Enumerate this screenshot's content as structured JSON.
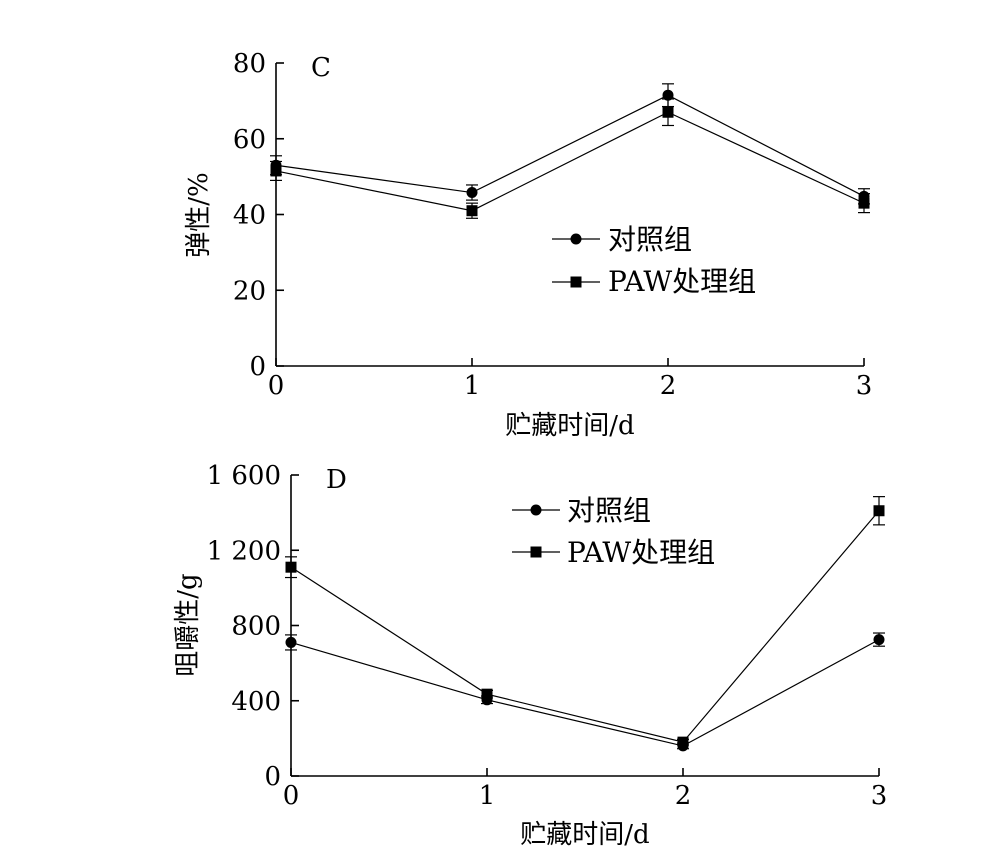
{
  "chart_data": [
    {
      "type": "line",
      "panel_label": "C",
      "title": "",
      "xlabel": "贮藏时间/d",
      "ylabel": "弹性/%",
      "xlim": [
        0,
        3
      ],
      "ylim": [
        0,
        80
      ],
      "x": [
        0,
        1,
        2,
        3
      ],
      "x_ticks": [
        "0",
        "1",
        "2",
        "3"
      ],
      "y_ticks": [
        "0",
        "20",
        "40",
        "60",
        "80"
      ],
      "legend_position": "middle-right",
      "series": [
        {
          "name": "对照组",
          "marker": "circle",
          "values": [
            53,
            45.8,
            71.5,
            44.8
          ],
          "errors": [
            2.5,
            2,
            3,
            2
          ]
        },
        {
          "name": "PAW处理组",
          "marker": "square",
          "values": [
            51.5,
            41,
            67,
            43
          ],
          "errors": [
            2.5,
            2,
            3.5,
            2.5
          ]
        }
      ]
    },
    {
      "type": "line",
      "panel_label": "D",
      "title": "",
      "xlabel": "贮藏时间/d",
      "ylabel": "咀嚼性/g",
      "xlim": [
        0,
        3
      ],
      "ylim": [
        0,
        1600
      ],
      "x": [
        0,
        1,
        2,
        3
      ],
      "x_ticks": [
        "0",
        "1",
        "2",
        "3"
      ],
      "y_ticks": [
        "0",
        "400",
        "800",
        "1 200",
        "1 600"
      ],
      "legend_position": "top-right",
      "series": [
        {
          "name": "对照组",
          "marker": "circle",
          "values": [
            710,
            405,
            160,
            725
          ],
          "errors": [
            40,
            20,
            15,
            35
          ]
        },
        {
          "name": "PAW处理组",
          "marker": "square",
          "values": [
            1110,
            435,
            180,
            1410
          ],
          "errors": [
            55,
            20,
            15,
            75
          ]
        }
      ]
    }
  ]
}
